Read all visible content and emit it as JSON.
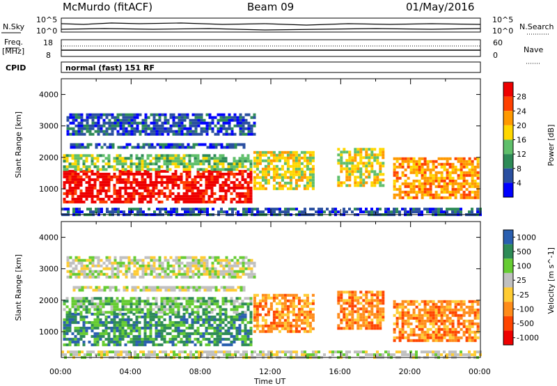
{
  "header": {
    "station": "McMurdo (fitACF)",
    "beam": "Beam 09",
    "date": "01/May/2016"
  },
  "left_labels": {
    "nsky": "N.Sky",
    "freq_line1": "Freq.",
    "freq_line2": "[MHz]",
    "cpid": "CPID"
  },
  "right_labels": {
    "nsearch": "N.Search",
    "nave": "Nave"
  },
  "cpid_text": "normal (fast) 151 RF",
  "noise_axis": {
    "left_ticks": [
      "10^5",
      "10^0"
    ],
    "right_ticks": [
      "10^5",
      "10^0"
    ]
  },
  "freq_axis": {
    "left_ticks": [
      "18",
      "8"
    ],
    "right_ticks": [
      "60",
      "0"
    ]
  },
  "time_axis": {
    "label": "Time UT",
    "ticks": [
      "00:00",
      "04:00",
      "08:00",
      "12:00",
      "16:00",
      "20:00",
      "00:00"
    ]
  },
  "colors": {
    "power": [
      "#0000ff",
      "#2a4fa0",
      "#2e8b57",
      "#5fbf6a",
      "#ffd700",
      "#ff9900",
      "#ff4000",
      "#ee0000"
    ],
    "velocity": [
      "#ee0000",
      "#ff4500",
      "#ff8c1a",
      "#ffcc33",
      "#c0c0c0",
      "#66cc33",
      "#2e8b57",
      "#2a5fb0"
    ]
  },
  "chart_data": [
    {
      "type": "heatmap",
      "panel": "power",
      "ylabel": "Slant Range [km]",
      "ylim": [
        180,
        4500
      ],
      "yticks": [
        "1000",
        "2000",
        "3000",
        "4000"
      ],
      "xlim": [
        0,
        24
      ],
      "colorbar_label": "Power [dB]",
      "colorbar_ticks": [
        "4",
        "8",
        "12",
        "16",
        "20",
        "24",
        "28"
      ],
      "regions": [
        {
          "t0": 0.1,
          "t1": 10.8,
          "r0": 600,
          "r1": 1600,
          "level": 7
        },
        {
          "t0": 0.1,
          "t1": 10.8,
          "r0": 1600,
          "r1": 2100,
          "level": 3
        },
        {
          "t0": 0.5,
          "t1": 10.5,
          "r0": 2300,
          "r1": 2450,
          "level": 1
        },
        {
          "t0": 0.3,
          "t1": 11.0,
          "r0": 2700,
          "r1": 3400,
          "level": 1
        },
        {
          "t0": 11.0,
          "t1": 14.5,
          "r0": 1000,
          "r1": 2200,
          "level": 4
        },
        {
          "t0": 15.8,
          "t1": 18.5,
          "r0": 1100,
          "r1": 2300,
          "level": 4
        },
        {
          "t0": 19.0,
          "t1": 23.9,
          "r0": 700,
          "r1": 2000,
          "level": 5
        },
        {
          "t0": 0.0,
          "t1": 24.0,
          "r0": 200,
          "r1": 400,
          "level": 1
        }
      ]
    },
    {
      "type": "heatmap",
      "panel": "velocity",
      "ylabel": "Slant Range [km]",
      "ylim": [
        180,
        4500
      ],
      "yticks": [
        "1000",
        "2000",
        "3000",
        "4000"
      ],
      "xlim": [
        0,
        24
      ],
      "colorbar_label": "Velocity [m s^-1]",
      "colorbar_ticks": [
        "1000",
        "500",
        "100",
        "25",
        "-25",
        "-100",
        "-500",
        "-1000"
      ],
      "regions": [
        {
          "t0": 0.1,
          "t1": 10.8,
          "r0": 600,
          "r1": 1600,
          "level": 6
        },
        {
          "t0": 0.1,
          "t1": 10.8,
          "r0": 1600,
          "r1": 2100,
          "level": 5
        },
        {
          "t0": 0.5,
          "t1": 10.5,
          "r0": 2300,
          "r1": 2450,
          "level": 4
        },
        {
          "t0": 0.3,
          "t1": 11.0,
          "r0": 2700,
          "r1": 3400,
          "level": 4
        },
        {
          "t0": 11.0,
          "t1": 14.5,
          "r0": 1000,
          "r1": 2200,
          "level": 2
        },
        {
          "t0": 15.8,
          "t1": 18.5,
          "r0": 1100,
          "r1": 2300,
          "level": 2
        },
        {
          "t0": 19.0,
          "t1": 23.9,
          "r0": 700,
          "r1": 2000,
          "level": 2
        },
        {
          "t0": 0.0,
          "t1": 24.0,
          "r0": 200,
          "r1": 400,
          "level": 4
        }
      ]
    }
  ]
}
